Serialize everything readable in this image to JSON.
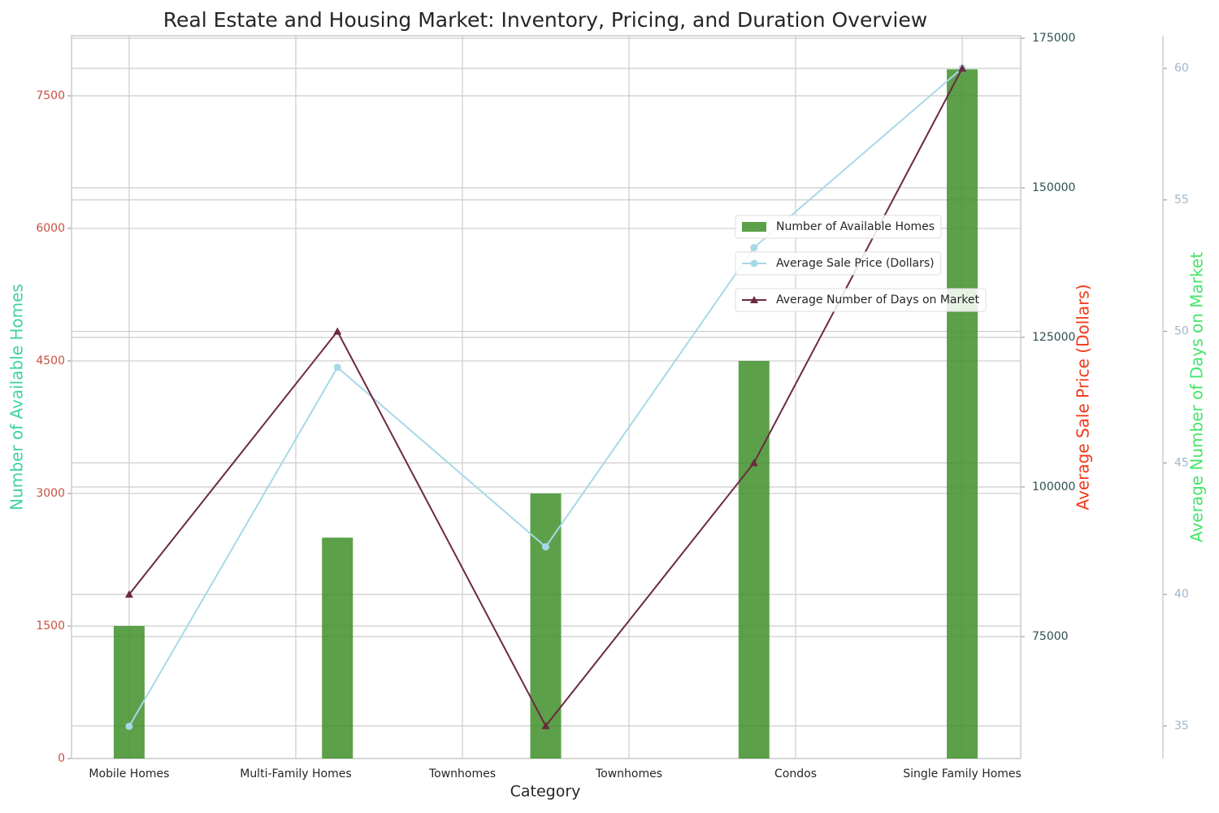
{
  "chart_data": {
    "type": "bar",
    "title": "Real Estate and Housing Market: Inventory, Pricing, and Duration Overview",
    "xlabel": "Category",
    "x": [
      0,
      1.25,
      2.5,
      3.75,
      5
    ],
    "xlim": [
      -0.346,
      5.351
    ],
    "xticks": [
      {
        "value": 0,
        "label": "Mobile Homes"
      },
      {
        "value": 1,
        "label": "Multi-Family Homes"
      },
      {
        "value": 2,
        "label": "Townhomes"
      },
      {
        "value": 3,
        "label": "Townhomes"
      },
      {
        "value": 4,
        "label": "Condos"
      },
      {
        "value": 5,
        "label": "Single Family Homes"
      }
    ],
    "ylabel": "Number of Available Homes",
    "ylabel_color": "#3fd39a",
    "ytick_color": "#c9503f",
    "ylim": [
      0,
      8180
    ],
    "yticks": [
      0,
      1500,
      3000,
      4500,
      6000,
      7500
    ],
    "y2label": "Average Sale Price (Dollars)",
    "y2label_color": "#f0391a",
    "y2tick_color": "#2f4f4f",
    "y2lim": [
      54620,
      175410
    ],
    "y2ticks": [
      75000,
      100000,
      125000,
      150000,
      175000
    ],
    "y3label": "Average Number of Days on Market",
    "y3label_color": "#44e56a",
    "y3tick_color": "#9fb6cd",
    "y3lim": [
      33.76,
      61.24
    ],
    "y3ticks": [
      35,
      40,
      45,
      50,
      55,
      60
    ],
    "grid": true,
    "legend": "center right",
    "series": [
      {
        "name": "Number of Available Homes",
        "type": "bar",
        "axis": "y",
        "color": "#3f8f2a",
        "values": [
          1500,
          2500,
          3000,
          4500,
          7800
        ]
      },
      {
        "name": "Average Sale Price (Dollars)",
        "type": "line",
        "axis": "y2",
        "marker": "circle",
        "color": "#a8d8e8",
        "values": [
          60000,
          120000,
          90000,
          140000,
          170000
        ]
      },
      {
        "name": "Average Number of Days on Market",
        "type": "line",
        "axis": "y3",
        "marker": "triangle",
        "color": "#6b2a40",
        "values": [
          40,
          50,
          35,
          45,
          60
        ]
      }
    ]
  }
}
